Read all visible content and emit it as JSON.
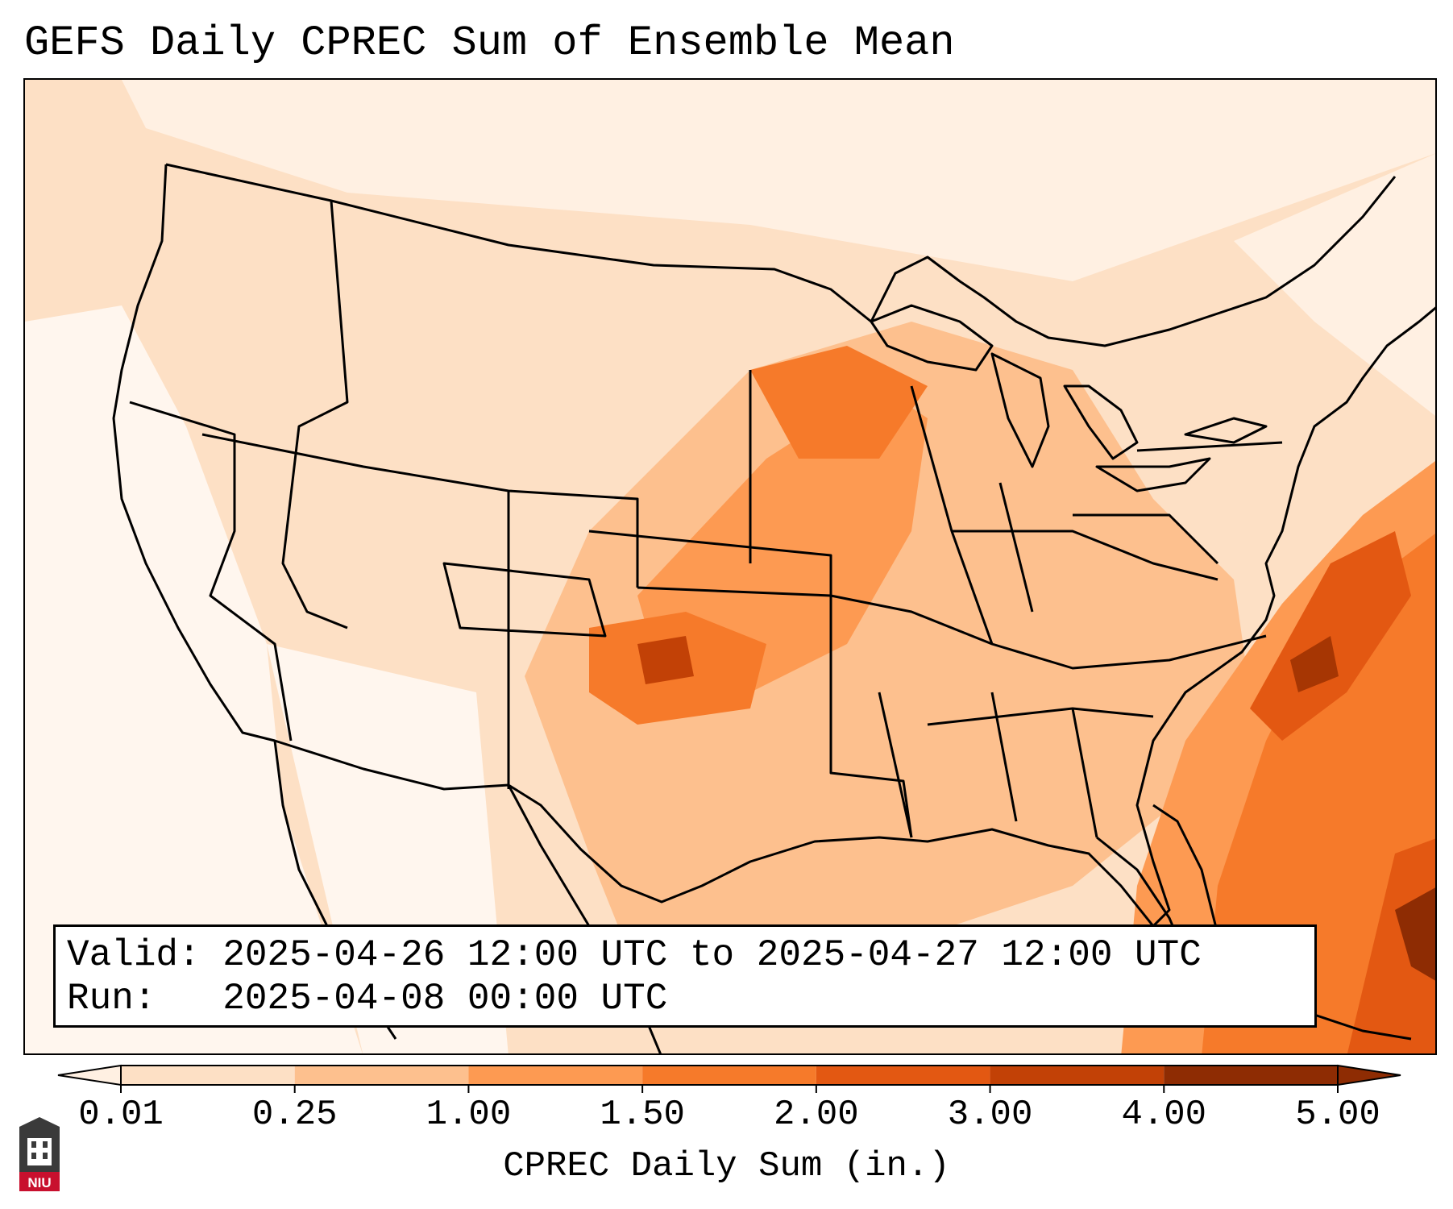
{
  "title": "GEFS Daily CPREC Sum of Ensemble Mean",
  "info": {
    "valid_label": "Valid:",
    "valid_text": "2025-04-26 12:00 UTC to 2025-04-27 12:00 UTC",
    "run_label": "Run:",
    "run_text": "2025-04-08 00:00 UTC"
  },
  "colorbar": {
    "ticks": [
      "0.01",
      "0.25",
      "1.00",
      "1.50",
      "2.00",
      "3.00",
      "4.00",
      "5.00"
    ],
    "colors": [
      "#fff0e2",
      "#fde0c5",
      "#fdc08e",
      "#fd9a52",
      "#f67a2a",
      "#e35812",
      "#c24106",
      "#8e2c03"
    ],
    "label": "CPREC Daily Sum (in.)",
    "extend": "both"
  },
  "map": {
    "projection": "Lambert Conformal",
    "region": "CONUS",
    "field_colors": {
      "very_light": "#fff0e2",
      "light": "#fde0c5",
      "medium": "#fdc08e",
      "medium_dark": "#fd9a52",
      "dark": "#f67a2a",
      "darker": "#e35812",
      "darkest": "#a63603"
    }
  },
  "logo": {
    "text": "NIU",
    "color": "#c8102e"
  }
}
